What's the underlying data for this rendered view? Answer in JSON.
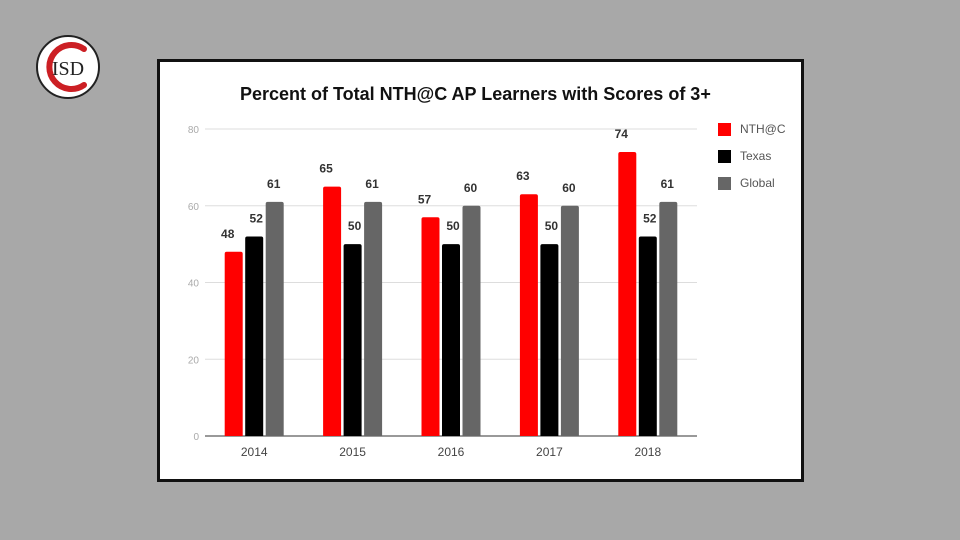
{
  "logo": {
    "text": "ISD",
    "accent": "#cc1f24"
  },
  "chart_data": {
    "type": "bar",
    "title": "Percent of Total NTH@C  AP Learners with Scores of 3+",
    "xlabel": "",
    "ylabel": "",
    "ylim": [
      0,
      80
    ],
    "yticks": [
      "0",
      "20",
      "40",
      "60",
      "80"
    ],
    "grid": true,
    "legend_position": "right",
    "categories": [
      "2014",
      "2015",
      "2016",
      "2017",
      "2018"
    ],
    "series": [
      {
        "name": "NTH@C",
        "color": "#ff0000",
        "values": [
          48,
          65,
          57,
          63,
          74
        ],
        "labels": [
          "48",
          "65",
          "57",
          "63",
          "74"
        ]
      },
      {
        "name": "Texas",
        "color": "#000000",
        "values": [
          52,
          50,
          50,
          50,
          52
        ],
        "labels": [
          "52",
          "50",
          "50",
          "50",
          "52"
        ]
      },
      {
        "name": "Global",
        "color": "#666666",
        "values": [
          61,
          61,
          60,
          60,
          61
        ],
        "labels": [
          "61",
          "61",
          "60",
          "60",
          "61"
        ]
      }
    ]
  }
}
